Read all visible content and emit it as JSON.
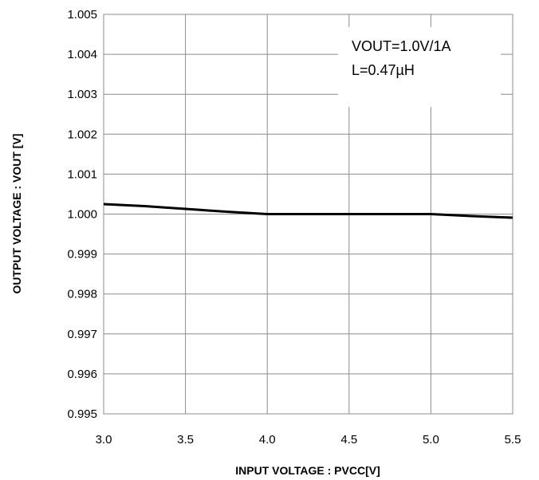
{
  "chart_data": {
    "type": "line",
    "title": "",
    "xlabel": "INPUT VOLTAGE : PVCC[V]",
    "ylabel": "OUTPUT VOLTAGE : VOUT [V]",
    "xlim": [
      3.0,
      5.5
    ],
    "ylim": [
      0.995,
      1.005
    ],
    "x_ticks": [
      3.0,
      3.5,
      4.0,
      4.5,
      5.0,
      5.5
    ],
    "x_tick_labels": [
      "3.0",
      "3.5",
      "4.0",
      "4.5",
      "5.0",
      "5.5"
    ],
    "y_ticks": [
      0.995,
      0.996,
      0.997,
      0.998,
      0.999,
      1.0,
      1.001,
      1.002,
      1.003,
      1.004,
      1.005
    ],
    "y_tick_labels": [
      "0.995",
      "0.996",
      "0.997",
      "0.998",
      "0.999",
      "1.000",
      "1.001",
      "1.002",
      "1.003",
      "1.004",
      "1.005"
    ],
    "grid": true,
    "legend": "none",
    "annotation": [
      "VOUT=1.0V/1A",
      "L=0.47µH"
    ],
    "line_color": "#000000",
    "grid_color": "#8c8c8c",
    "series": [
      {
        "x": [
          3.0,
          3.25,
          3.5,
          3.75,
          4.0,
          4.25,
          4.5,
          4.75,
          5.0,
          5.25,
          5.5
        ],
        "values": [
          1.00025,
          1.0002,
          1.00013,
          1.00006,
          1.0,
          1.0,
          1.0,
          1.0,
          1.0,
          0.99995,
          0.99991
        ]
      }
    ]
  }
}
